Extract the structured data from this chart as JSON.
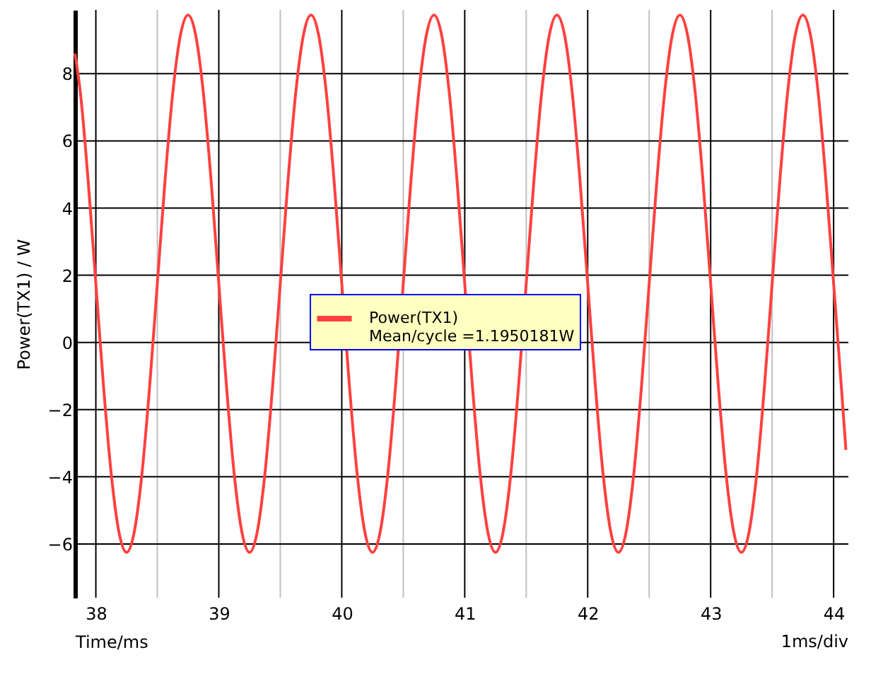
{
  "chart_data": {
    "type": "line",
    "xlabel": "Time/ms",
    "ylabel": "Power(TX1) / W",
    "annotations": [
      "Mean/cycle =1.1950181W",
      "1ms/div"
    ],
    "xlim": [
      37.83,
      44.12
    ],
    "ylim": [
      -7.6,
      9.9
    ],
    "xticks": [
      38,
      {
        "value": 38.5,
        "label": null
      },
      39,
      {
        "value": 39.5,
        "label": null
      },
      40,
      {
        "value": 40.5,
        "label": null
      },
      41,
      {
        "value": 41.5,
        "label": null
      },
      42,
      {
        "value": 42.5,
        "label": null
      },
      43,
      {
        "value": 43.5,
        "label": null
      },
      44
    ],
    "yticks": [
      -6,
      -4,
      -2,
      0,
      2,
      4,
      6,
      8
    ],
    "grid": true,
    "legend": "center",
    "marker": "none",
    "line_style": "solid",
    "x": [
      37.83,
      37.875,
      37.9375,
      38,
      38.0625,
      38.125,
      38.1875,
      38.25,
      38.3125,
      38.375,
      38.4375,
      38.5,
      38.5625,
      38.625,
      38.6875,
      38.75,
      38.8125,
      38.875,
      38.9375,
      39,
      39.0625,
      39.125,
      39.1875,
      39.25,
      39.3125,
      39.375,
      39.4375,
      39.5,
      39.5625,
      39.625,
      39.6875,
      39.75,
      39.8125,
      39.875,
      39.9375,
      40,
      40.0625,
      40.125,
      40.1875,
      40.25,
      40.3125,
      40.375,
      40.4375,
      40.5,
      40.5625,
      40.625,
      40.6875,
      40.75,
      40.8125,
      40.875,
      40.9375,
      41,
      41.0625,
      41.125,
      41.1875,
      41.25,
      41.3125,
      41.375,
      41.4375,
      41.5,
      41.5625,
      41.625,
      41.6875,
      41.75,
      41.8125,
      41.875,
      41.9375,
      42,
      42.0625,
      42.125,
      42.1875,
      42.25,
      42.3125,
      42.375,
      42.4375,
      42.5,
      42.5625,
      42.625,
      42.6875,
      42.75,
      42.8125,
      42.875,
      42.9375,
      43,
      43.0625,
      43.125,
      43.1875,
      43.25,
      43.3125,
      43.375,
      43.4375,
      43.5,
      43.5625,
      43.625,
      43.6875,
      43.75,
      43.8125,
      43.875,
      43.9375,
      44,
      44.0625,
      44.1
    ],
    "series": [
      {
        "name": "Power(TX1)",
        "color": "#ff4040",
        "values": [
          8.6,
          7.41,
          4.81,
          1.75,
          -1.31,
          -3.91,
          -5.64,
          -6.25,
          -5.64,
          -3.91,
          -1.31,
          1.75,
          4.81,
          7.41,
          9.14,
          9.75,
          9.14,
          7.41,
          4.81,
          1.75,
          -1.31,
          -3.91,
          -5.64,
          -6.25,
          -5.64,
          -3.91,
          -1.31,
          1.75,
          4.81,
          7.41,
          9.14,
          9.75,
          9.14,
          7.41,
          4.81,
          1.75,
          -1.31,
          -3.91,
          -5.64,
          -6.25,
          -5.64,
          -3.91,
          -1.31,
          1.75,
          4.81,
          7.41,
          9.14,
          9.75,
          9.14,
          7.41,
          4.81,
          1.75,
          -1.31,
          -3.91,
          -5.64,
          -6.25,
          -5.64,
          -3.91,
          -1.31,
          1.75,
          4.81,
          7.41,
          9.14,
          9.75,
          9.14,
          7.41,
          4.81,
          1.75,
          -1.31,
          -3.91,
          -5.64,
          -6.25,
          -5.64,
          -3.91,
          -1.31,
          1.75,
          4.81,
          7.41,
          9.14,
          9.75,
          9.14,
          7.41,
          4.81,
          1.75,
          -1.31,
          -3.91,
          -5.64,
          -6.25,
          -5.64,
          -3.91,
          -1.31,
          1.75,
          4.81,
          7.41,
          9.14,
          9.75,
          9.14,
          7.41,
          4.81,
          1.75,
          -1.31,
          -3.2
        ]
      }
    ]
  }
}
